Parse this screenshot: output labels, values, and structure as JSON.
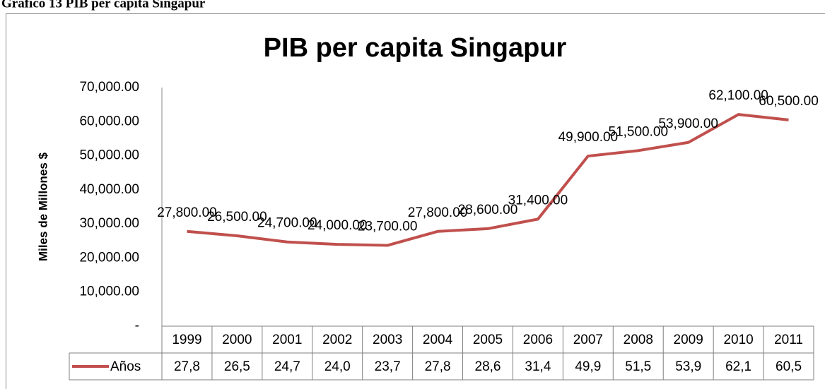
{
  "heading": "Gráfico 13 PIB per capita Singapur",
  "chart_data": {
    "type": "line",
    "title": "PIB per capita Singapur",
    "y_label": "Miles de Millones $",
    "categories": [
      "1999",
      "2000",
      "2001",
      "2002",
      "2003",
      "2004",
      "2005",
      "2006",
      "2007",
      "2008",
      "2009",
      "2010",
      "2011"
    ],
    "series": [
      {
        "name": "Años",
        "color": "#c0504d",
        "values": [
          27800,
          26500,
          24700,
          24000,
          23700,
          27800,
          28600,
          31400,
          49900,
          51500,
          53900,
          62100,
          60500
        ],
        "value_labels": [
          "27,800.00",
          "26,500.00",
          "24,700.00",
          "24,000.00",
          "23,700.00",
          "27,800.00",
          "28,600.00",
          "31,400.00",
          "49,900.00",
          "51,500.00",
          "53,900.00",
          "62,100.00",
          "60,500.00"
        ],
        "table_labels": [
          "27,8",
          "26,5",
          "24,7",
          "24,0",
          "23,7",
          "27,8",
          "28,6",
          "31,4",
          "49,9",
          "51,5",
          "53,9",
          "62,1",
          "60,5"
        ]
      }
    ],
    "ylim": [
      0,
      70000
    ],
    "yticks": [
      {
        "value": 0,
        "label": "-"
      },
      {
        "value": 10000,
        "label": "10,000.00"
      },
      {
        "value": 20000,
        "label": "20,000.00"
      },
      {
        "value": 30000,
        "label": "30,000.00"
      },
      {
        "value": 40000,
        "label": "40,000.00"
      },
      {
        "value": 50000,
        "label": "50,000.00"
      },
      {
        "value": 60000,
        "label": "60,000.00"
      },
      {
        "value": 70000,
        "label": "70,000.00"
      }
    ],
    "grid": false
  }
}
